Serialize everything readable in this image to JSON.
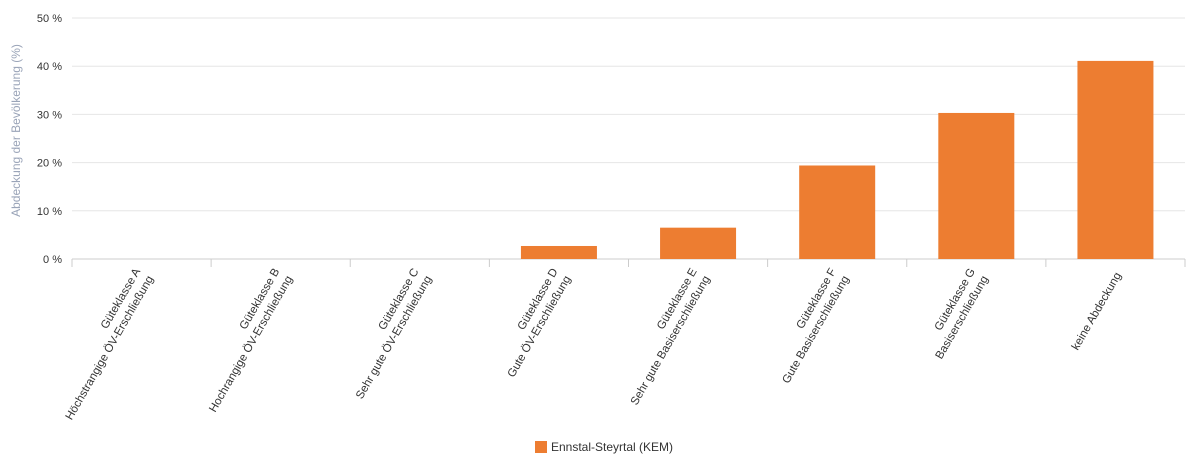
{
  "chart_data": {
    "type": "bar",
    "ylabel": "Abdeckung der Bevölkerung (%)",
    "ylim": [
      0,
      50
    ],
    "yticks": [
      0,
      10,
      20,
      30,
      40,
      50
    ],
    "ytick_suffix": " %",
    "grid": true,
    "legend_position": "bottom-center",
    "categories": [
      [
        "Güteklasse A",
        "Höchstrangige ÖV-Erschließung"
      ],
      [
        "Güteklasse B",
        "Hochrangige ÖV-Erschließung"
      ],
      [
        "Güteklasse C",
        "Sehr gute ÖV-Erschließung"
      ],
      [
        "Güteklasse D",
        "Gute ÖV-Erschließung"
      ],
      [
        "Güteklasse E",
        "Sehr gute Basiserschließung"
      ],
      [
        "Güteklasse F",
        "Gute Basiserschließung"
      ],
      [
        "Güteklasse G",
        "Basiserschließung"
      ],
      [
        "keine Abdeckung"
      ]
    ],
    "series": [
      {
        "name": "Ennstal-Steyrtal (KEM)",
        "color": "#ed7d31",
        "values": [
          0,
          0,
          0,
          2.7,
          6.5,
          19.4,
          30.3,
          41.1
        ]
      }
    ]
  }
}
